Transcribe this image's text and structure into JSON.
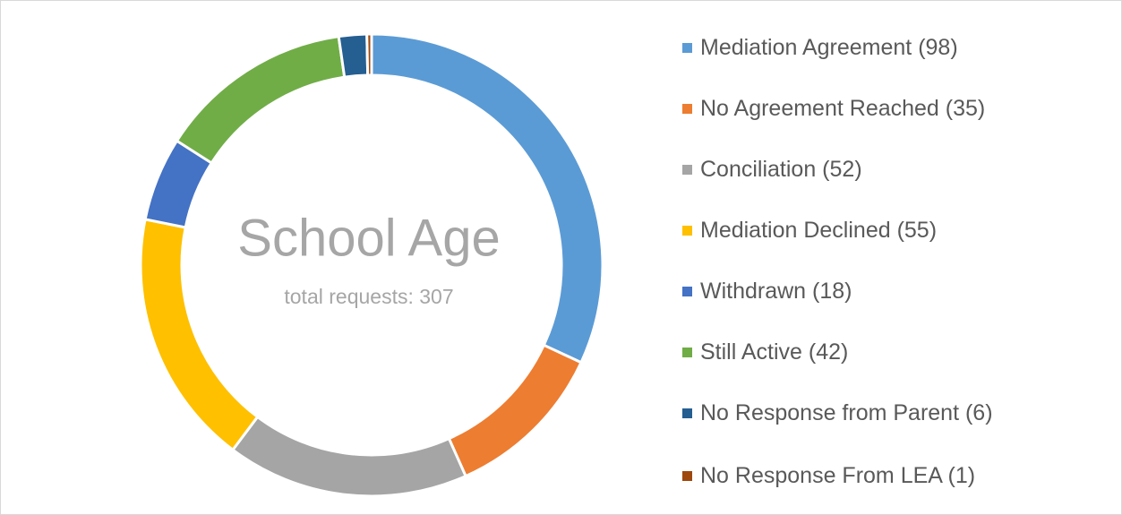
{
  "chart_data": {
    "type": "donut",
    "title": "School Age",
    "subtitle": "total requests: 307",
    "categories": [
      "Mediation Agreement (98)",
      "No Agreement Reached (35)",
      "Conciliation (52)",
      "Mediation Declined (55)",
      "Withdrawn (18)",
      "Still Active (42)",
      "No Response from Parent (6)",
      "No Response From LEA (1)"
    ],
    "values": [
      98,
      35,
      52,
      55,
      18,
      42,
      6,
      1
    ],
    "colors": [
      "#5b9bd5",
      "#ed7d31",
      "#a5a5a5",
      "#ffc000",
      "#4472c4",
      "#70ad47",
      "#255e91",
      "#9e480e"
    ],
    "legend": "right"
  }
}
